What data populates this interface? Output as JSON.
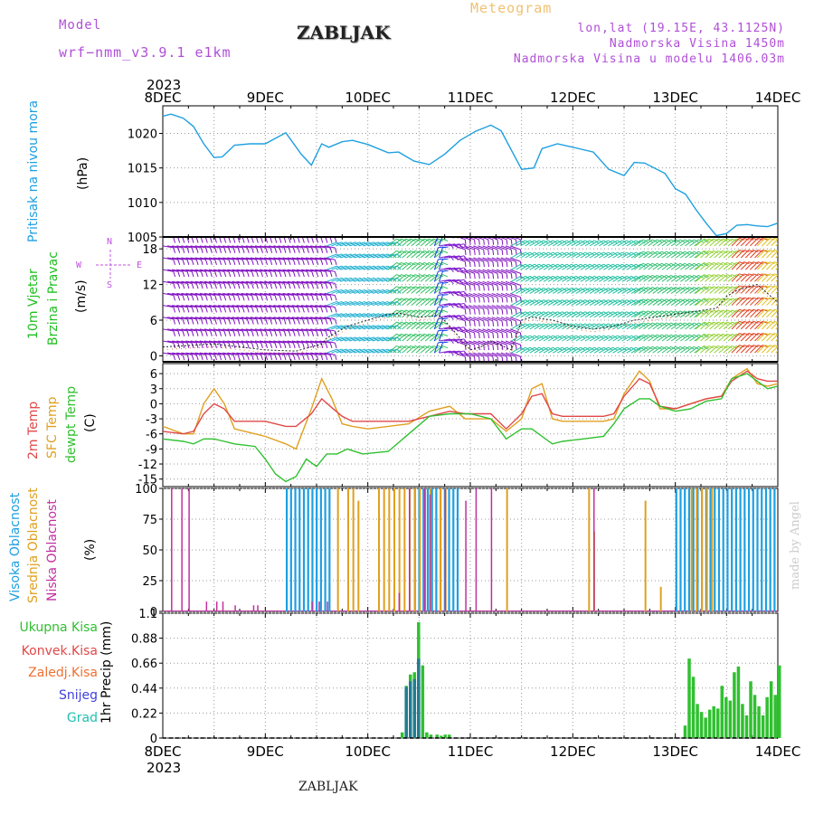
{
  "header": {
    "model_label": "Model",
    "model_name": "wrf−nmm_v3.9.1 e1km",
    "station": "ZABLJAK",
    "product": "Meteogram",
    "lonlat": "lon,lat (19.15E, 43.1125N)",
    "altitude": "Nadmorska Visina 1450m",
    "model_altitude": "Nadmorska Visina u modelu 1406.03m",
    "year": "2023",
    "footer_station": "ZABLJAK",
    "watermark": "made by Angel"
  },
  "colors": {
    "pressure": "#1ea0e0",
    "wind_label": "#20c020",
    "temp2m": "#e04848",
    "sfc": "#e0a020",
    "dewpt": "#30c030",
    "cloud_high": "#1ea0e0",
    "cloud_mid": "#e0a020",
    "cloud_low": "#c030a0",
    "precip_total": "#30c030",
    "precip_conv": "#e04848",
    "precip_frz": "#f07030",
    "precip_snow": "#4040e0",
    "precip_hail": "#20c0b0",
    "direction_compass": "#c050e0"
  },
  "chart_data": [
    {
      "type": "line",
      "panel": "pressure",
      "ylabel_lines": [
        "Pritisak na nivou mora",
        "(hPa)"
      ],
      "x_ticks": [
        "8DEC",
        "9DEC",
        "10DEC",
        "11DEC",
        "12DEC",
        "13DEC",
        "14DEC"
      ],
      "x_range": [
        0,
        6
      ],
      "ylim": [
        1005,
        1024
      ],
      "yticks": [
        1005,
        1010,
        1015,
        1020
      ],
      "series": [
        {
          "key": "pressure",
          "x": [
            0,
            0.08,
            0.2,
            0.3,
            0.4,
            0.5,
            0.58,
            0.7,
            0.85,
            1.0,
            1.2,
            1.35,
            1.45,
            1.55,
            1.62,
            1.75,
            1.85,
            2.0,
            2.2,
            2.3,
            2.45,
            2.6,
            2.75,
            2.9,
            3.05,
            3.2,
            3.3,
            3.5,
            3.62,
            3.7,
            3.85,
            4.0,
            4.2,
            4.35,
            4.5,
            4.6,
            4.7,
            4.9,
            5.0,
            5.1,
            5.2,
            5.3,
            5.4,
            5.5,
            5.6,
            5.7,
            5.8,
            5.9,
            6.0
          ],
          "values": [
            1022.5,
            1022.8,
            1022.2,
            1021,
            1018.5,
            1016.5,
            1016.6,
            1018.3,
            1018.5,
            1018.5,
            1020.1,
            1017,
            1015.4,
            1018.5,
            1018,
            1018.8,
            1019,
            1018.4,
            1017.2,
            1017.3,
            1016,
            1015.5,
            1017,
            1019,
            1020.3,
            1021.2,
            1020.4,
            1014.8,
            1015,
            1017.8,
            1018.5,
            1018,
            1017.3,
            1014.8,
            1013.9,
            1015.8,
            1015.7,
            1014.2,
            1012,
            1011.2,
            1009,
            1007,
            1005.2,
            1005.5,
            1006.7,
            1006.8,
            1006.6,
            1006.5,
            1007
          ]
        }
      ]
    },
    {
      "type": "scatter",
      "panel": "wind",
      "ylabel_lines": [
        "10m Vjetar",
        "Brzina i Pravac",
        "(m/s)"
      ],
      "compass": {
        "north": "N",
        "south": "S",
        "west": "W",
        "east": "E"
      },
      "ylim": [
        -1,
        20
      ],
      "yticks": [
        0,
        6,
        12,
        18
      ],
      "series": [
        {
          "key": "wind_speed",
          "x": [
            0,
            0.5,
            1.0,
            1.3,
            1.55,
            1.6,
            1.8,
            2.0,
            2.2,
            2.3,
            2.5,
            2.7,
            2.8,
            3.0,
            3.1,
            3.2,
            3.4,
            3.5,
            3.6,
            3.8,
            4.0,
            4.2,
            4.4,
            4.6,
            4.8,
            5.0,
            5.2,
            5.4,
            5.5,
            5.6,
            5.8,
            6.0
          ],
          "values": [
            1.5,
            2,
            1,
            0.8,
            2,
            3,
            5,
            6,
            7,
            7.2,
            6.5,
            6.8,
            5,
            1,
            1.5,
            2.5,
            1,
            6,
            6.5,
            6,
            5,
            4.5,
            5,
            6,
            6.5,
            7,
            7.5,
            8,
            10,
            11,
            12,
            9
          ]
        }
      ],
      "barbs": {
        "rows": [
          0.5,
          2.5,
          4.5,
          6.5,
          8.5,
          10.5,
          12.5,
          14.5,
          16.5,
          18.5,
          20.2
        ],
        "segments": [
          {
            "x": [
              0.0,
              1.6
            ],
            "dir": 280,
            "color": "#8010c0"
          },
          {
            "x": [
              1.6,
              2.2
            ],
            "dir": 250,
            "color": "#20b0d0"
          },
          {
            "x": [
              2.2,
              2.65
            ],
            "dir": 230,
            "color": "#30c060"
          },
          {
            "x": [
              2.65,
              2.7
            ],
            "dir": 200,
            "color": "#1040e0"
          },
          {
            "x": [
              2.7,
              2.85
            ],
            "dir": 260,
            "color": "#8020d0"
          },
          {
            "x": [
              2.85,
              3.4
            ],
            "dir": 290,
            "color": "#8010c0"
          },
          {
            "x": [
              3.4,
              4.6
            ],
            "dir": 240,
            "color": "#20c0a0"
          },
          {
            "x": [
              4.6,
              5.2
            ],
            "dir": 235,
            "color": "#30c070"
          },
          {
            "x": [
              5.2,
              5.55
            ],
            "dir": 230,
            "color": "#90d030"
          },
          {
            "x": [
              5.55,
              5.8
            ],
            "dir": 225,
            "color": "#e04020"
          },
          {
            "x": [
              5.8,
              6.0
            ],
            "dir": 225,
            "color": "#e0c020"
          }
        ]
      }
    },
    {
      "type": "line",
      "panel": "temperature",
      "ylabel_lines": [
        "2m Temp",
        "SFC Temp",
        "dewpt Temp",
        "(C)"
      ],
      "ylim": [
        -16.5,
        8
      ],
      "yticks": [
        -15,
        -12,
        -9,
        -6,
        -3,
        0,
        3,
        6
      ],
      "series": [
        {
          "key": "temp2m",
          "x": [
            0,
            0.2,
            0.3,
            0.4,
            0.5,
            0.6,
            0.7,
            0.9,
            1.0,
            1.2,
            1.3,
            1.45,
            1.55,
            1.65,
            1.75,
            1.85,
            2.0,
            2.2,
            2.4,
            2.6,
            2.8,
            2.95,
            3.2,
            3.35,
            3.5,
            3.6,
            3.7,
            3.8,
            3.9,
            4.0,
            4.3,
            4.4,
            4.5,
            4.65,
            4.75,
            4.85,
            5.0,
            5.15,
            5.3,
            5.45,
            5.55,
            5.7,
            5.8,
            5.9,
            6.0
          ],
          "values": [
            -5.5,
            -6,
            -5.5,
            -2,
            0,
            -1,
            -3.5,
            -3.5,
            -3.5,
            -4.5,
            -4.5,
            -2,
            1,
            -0.8,
            -2.5,
            -3.5,
            -3.5,
            -3.5,
            -3.5,
            -2.5,
            -1.5,
            -2,
            -2,
            -5,
            -2,
            1.5,
            2,
            -2,
            -2.5,
            -2.5,
            -2.5,
            -2,
            1.5,
            5,
            4,
            -0.5,
            -1,
            0,
            1,
            1.5,
            4.5,
            6.5,
            5,
            4.5,
            4.5
          ]
        },
        {
          "key": "sfc",
          "x": [
            0,
            0.2,
            0.3,
            0.4,
            0.5,
            0.6,
            0.7,
            0.9,
            1.0,
            1.2,
            1.3,
            1.45,
            1.55,
            1.65,
            1.75,
            1.85,
            2.0,
            2.2,
            2.4,
            2.6,
            2.8,
            2.95,
            3.2,
            3.35,
            3.5,
            3.6,
            3.7,
            3.8,
            3.9,
            4.0,
            4.3,
            4.4,
            4.5,
            4.65,
            4.75,
            4.85,
            5.0,
            5.15,
            5.3,
            5.45,
            5.55,
            5.7,
            5.8,
            5.9,
            6.0
          ],
          "values": [
            -4.5,
            -6,
            -6,
            0,
            3,
            0,
            -5,
            -6,
            -6.5,
            -8,
            -9,
            -1,
            5,
            1,
            -4,
            -4.5,
            -5,
            -4.5,
            -4,
            -1.5,
            -0.5,
            -3,
            -3,
            -5.5,
            -3,
            3,
            4,
            -3,
            -3.5,
            -3.5,
            -3.5,
            -3,
            2,
            6.5,
            4.5,
            -1,
            -1,
            0,
            1,
            1.5,
            5,
            7,
            4,
            3.5,
            4
          ]
        },
        {
          "key": "dewpt",
          "x": [
            0,
            0.2,
            0.3,
            0.4,
            0.5,
            0.6,
            0.7,
            0.9,
            1.0,
            1.1,
            1.2,
            1.3,
            1.4,
            1.5,
            1.6,
            1.7,
            1.8,
            1.95,
            2.2,
            2.4,
            2.6,
            2.8,
            3.0,
            3.2,
            3.35,
            3.5,
            3.6,
            3.8,
            3.9,
            4.1,
            4.3,
            4.4,
            4.5,
            4.65,
            4.75,
            4.85,
            5.0,
            5.15,
            5.3,
            5.45,
            5.55,
            5.7,
            5.8,
            5.9,
            6.0
          ],
          "values": [
            -7,
            -7.5,
            -8,
            -7,
            -7,
            -7.5,
            -8,
            -8.5,
            -11,
            -14,
            -15.5,
            -14.5,
            -11,
            -12.5,
            -10,
            -10,
            -9,
            -10,
            -9.5,
            -6,
            -2.5,
            -2,
            -2,
            -3,
            -7,
            -5,
            -5,
            -8,
            -7.5,
            -7,
            -6.5,
            -4,
            -1,
            1,
            1,
            -0.5,
            -1.5,
            -1,
            0.5,
            1,
            5,
            6,
            4.5,
            3,
            3.5
          ]
        }
      ]
    },
    {
      "type": "bar",
      "panel": "clouds",
      "ylabel_lines": [
        "Visoka Oblacnost",
        "Srednja Oblacnost",
        "Niska Oblacnost",
        "(%)"
      ],
      "ylim": [
        0,
        100
      ],
      "yticks": [
        0,
        25,
        50,
        75,
        100
      ],
      "series": [
        {
          "key": "cloud_high",
          "ranges": [
            [
              1.2,
              1.65
            ],
            [
              2.45,
              2.9
            ],
            [
              5.0,
              6.0
            ]
          ],
          "value": 100
        },
        {
          "key": "cloud_mid",
          "x": [
            1.7,
            1.8,
            1.85,
            1.9,
            2.1,
            2.15,
            2.2,
            2.25,
            2.3,
            2.35,
            2.4,
            2.45,
            2.5,
            2.55,
            2.6,
            2.7,
            2.75,
            3.35,
            4.1,
            4.15,
            4.2,
            4.7,
            4.85,
            5.15,
            5.2,
            5.25,
            5.3,
            5.35
          ],
          "values": [
            100,
            100,
            100,
            90,
            100,
            100,
            100,
            100,
            100,
            100,
            100,
            100,
            100,
            100,
            100,
            100,
            100,
            100,
            0,
            100,
            65,
            90,
            20,
            100,
            100,
            100,
            100,
            100
          ]
        },
        {
          "key": "cloud_low",
          "x": [
            0.08,
            0.18,
            0.25,
            0.42,
            0.52,
            0.58,
            0.7,
            0.88,
            0.92,
            1.45,
            1.52,
            1.6,
            2.3,
            2.4,
            2.55,
            2.6,
            2.75,
            2.95,
            3.05,
            3.2,
            4.2
          ],
          "values": [
            100,
            100,
            100,
            8,
            8,
            8,
            5,
            5,
            5,
            8,
            8,
            8,
            15,
            100,
            100,
            95,
            100,
            90,
            100,
            100,
            100
          ]
        }
      ]
    },
    {
      "type": "bar",
      "panel": "precip",
      "ylabel_lines": [
        "Ukupna Kisa",
        "Konvek.Kisa",
        "Zaledj.Kisa",
        "Snijeg",
        "Grad",
        "1hr Precip (mm)"
      ],
      "ylim": [
        0,
        1.1
      ],
      "yticks": [
        0,
        0.22,
        0.44,
        0.66,
        0.88,
        1.1
      ],
      "series": [
        {
          "key": "precip_total",
          "x": [
            2.32,
            2.36,
            2.4,
            2.44,
            2.48,
            2.52,
            2.56,
            2.6,
            2.66,
            2.7,
            2.74,
            2.78,
            5.08,
            5.12,
            5.16,
            5.2,
            5.24,
            5.28,
            5.32,
            5.36,
            5.4,
            5.44,
            5.48,
            5.52,
            5.56,
            5.6,
            5.64,
            5.68,
            5.72,
            5.76,
            5.8,
            5.84,
            5.88,
            5.92,
            5.96,
            6.0
          ],
          "values": [
            0.05,
            0.46,
            0.56,
            0.58,
            1.02,
            0.64,
            0.05,
            0.03,
            0.03,
            0.02,
            0.03,
            0.03,
            0.11,
            0.7,
            0.54,
            0.3,
            0.23,
            0.18,
            0.25,
            0.28,
            0.26,
            0.46,
            0.36,
            0.33,
            0.58,
            0.63,
            0.3,
            0.2,
            0.5,
            0.38,
            0.28,
            0.2,
            0.36,
            0.5,
            0.38,
            0.64
          ]
        },
        {
          "key": "precip_snow",
          "x": [
            2.36,
            2.4,
            2.44,
            2.48
          ],
          "values": [
            0.45,
            0.5,
            0.52,
            0.7
          ]
        }
      ]
    }
  ]
}
